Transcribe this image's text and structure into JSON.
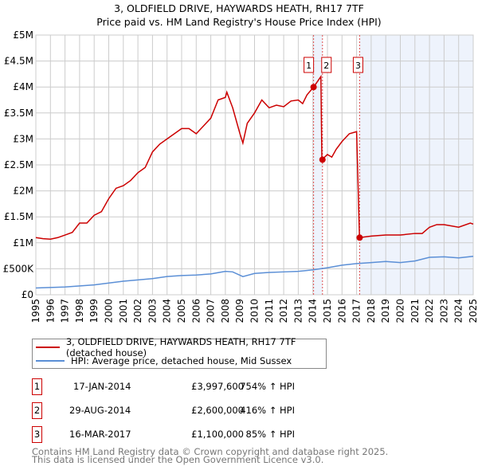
{
  "chart_data": {
    "type": "line",
    "title": "3, OLDFIELD DRIVE, HAYWARDS HEATH, RH17 7TF",
    "subtitle": "Price paid vs. HM Land Registry's House Price Index (HPI)",
    "xlim": [
      1995,
      2025
    ],
    "ylim": [
      0,
      5000000
    ],
    "x_ticks": [
      "1995",
      "1996",
      "1997",
      "1998",
      "1999",
      "2000",
      "2001",
      "2002",
      "2003",
      "2004",
      "2005",
      "2006",
      "2007",
      "2008",
      "2009",
      "2010",
      "2011",
      "2012",
      "2013",
      "2014",
      "2015",
      "2016",
      "2017",
      "2018",
      "2019",
      "2020",
      "2021",
      "2022",
      "2023",
      "2024",
      "2025"
    ],
    "y_ticks": [
      {
        "v": 0,
        "label": "£0"
      },
      {
        "v": 500000,
        "label": "£500K"
      },
      {
        "v": 1000000,
        "label": "£1M"
      },
      {
        "v": 1500000,
        "label": "£1.5M"
      },
      {
        "v": 2000000,
        "label": "£2M"
      },
      {
        "v": 2500000,
        "label": "£2.5M"
      },
      {
        "v": 3000000,
        "label": "£3M"
      },
      {
        "v": 3500000,
        "label": "£3.5M"
      },
      {
        "v": 4000000,
        "label": "£4M"
      },
      {
        "v": 4500000,
        "label": "£4.5M"
      },
      {
        "v": 5000000,
        "label": "£5M"
      }
    ],
    "grid": true,
    "series": [
      {
        "name": "3, OLDFIELD DRIVE, HAYWARDS HEATH, RH17 7TF (detached house)",
        "color": "#cc0000",
        "x": [
          1995,
          1995.5,
          1996,
          1996.5,
          1997,
          1997.5,
          1998,
          1998.5,
          1999,
          1999.5,
          2000,
          2000.5,
          2001,
          2001.5,
          2002,
          2002.5,
          2003,
          2003.5,
          2004,
          2004.5,
          2005,
          2005.5,
          2006,
          2006.5,
          2007,
          2007.5,
          2008,
          2008.1,
          2008.5,
          2009,
          2009.2,
          2009.5,
          2010,
          2010.5,
          2011,
          2011.5,
          2012,
          2012.5,
          2013,
          2013.3,
          2013.6,
          2014.05,
          2014.55,
          2014.62,
          2015,
          2015.3,
          2015.6,
          2016,
          2016.5,
          2017.0,
          2017.2,
          2018,
          2019,
          2020,
          2021,
          2021.5,
          2022,
          2022.5,
          2023,
          2024,
          2024.8,
          2025
        ],
        "y": [
          1100000,
          1080000,
          1070000,
          1100000,
          1150000,
          1200000,
          1380000,
          1380000,
          1530000,
          1600000,
          1850000,
          2050000,
          2100000,
          2200000,
          2350000,
          2450000,
          2750000,
          2900000,
          3000000,
          3100000,
          3200000,
          3200000,
          3100000,
          3250000,
          3400000,
          3750000,
          3800000,
          3900000,
          3600000,
          3100000,
          2920000,
          3300000,
          3500000,
          3750000,
          3600000,
          3650000,
          3620000,
          3730000,
          3750000,
          3680000,
          3850000,
          3997600,
          4200000,
          2600000,
          2700000,
          2650000,
          2800000,
          2950000,
          3100000,
          3140000,
          1100000,
          1130000,
          1150000,
          1150000,
          1180000,
          1180000,
          1300000,
          1350000,
          1350000,
          1300000,
          1380000,
          1360000
        ]
      },
      {
        "name": "HPI: Average price, detached house, Mid Sussex",
        "color": "#5b8fd6",
        "x": [
          1995,
          1997,
          1999,
          2001,
          2003,
          2004,
          2005,
          2006,
          2007,
          2008,
          2008.5,
          2009.2,
          2010,
          2011,
          2012,
          2013,
          2014,
          2015,
          2016,
          2017,
          2018,
          2019,
          2020,
          2021,
          2022,
          2023,
          2024,
          2025
        ],
        "y": [
          130000,
          150000,
          190000,
          260000,
          310000,
          350000,
          370000,
          380000,
          400000,
          450000,
          440000,
          350000,
          410000,
          430000,
          440000,
          450000,
          480000,
          520000,
          570000,
          600000,
          620000,
          640000,
          620000,
          650000,
          720000,
          730000,
          710000,
          740000
        ]
      }
    ],
    "sales": [
      {
        "id": "1",
        "x": 2014.05,
        "y": 3997600,
        "date": "17-JAN-2014",
        "price": "£3,997,600",
        "hpi": "754% ↑ HPI"
      },
      {
        "id": "2",
        "x": 2014.66,
        "y": 2600000,
        "date": "29-AUG-2014",
        "price": "£2,600,000",
        "hpi": "416% ↑ HPI"
      },
      {
        "id": "3",
        "x": 2017.21,
        "y": 1100000,
        "date": "16-MAR-2017",
        "price": "£1,100,000",
        "hpi": "85% ↑ HPI"
      }
    ],
    "shaded": [
      [
        2014.05,
        2014.66
      ],
      [
        2017.21,
        2025
      ]
    ],
    "legend_position": "bottom"
  },
  "footer": {
    "line1": "Contains HM Land Registry data © Crown copyright and database right 2025.",
    "line2": "This data is licensed under the Open Government Licence v3.0."
  }
}
